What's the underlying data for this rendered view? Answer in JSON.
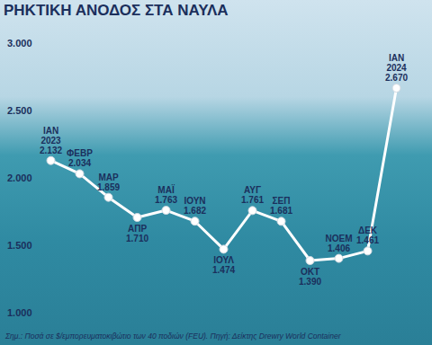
{
  "chart_data": {
    "type": "line",
    "title": "ΡΗΚΤΙΚΗ ΑΝΟΔΟΣ ΣΤΑ ΝΑΥΛΑ",
    "caption": "Σημ.: Ποσά σε $/εμπορευματοκιβώτιο των 40 ποδιών (FEU). Πηγή: Δείκτης Drewry World Container",
    "categories": [
      "ΙΑΝ\n2023",
      "ΦΕΒΡ",
      "ΜΑΡ",
      "ΑΠΡ",
      "ΜΑΪ",
      "ΙΟΥΝ",
      "ΙΟΥΛ",
      "ΑΥΓ",
      "ΣΕΠ",
      "ΟΚΤ",
      "ΝΟΕΜ",
      "ΔΕΚ",
      "ΙΑΝ\n2024"
    ],
    "values": [
      2132,
      2034,
      1859,
      1710,
      1763,
      1682,
      1474,
      1761,
      1681,
      1390,
      1406,
      1461,
      2670
    ],
    "value_labels": [
      "2.132",
      "2.034",
      "1.859",
      "1.710",
      "1.763",
      "1.682",
      "1.474",
      "1.761",
      "1.681",
      "1.390",
      "1.406",
      "1.461",
      "2.670"
    ],
    "data_labels": true,
    "color": "#ffffff",
    "marker": "circle",
    "ylim": [
      1000,
      3000
    ],
    "yticks": [
      {
        "value": 1000,
        "label": "1.000"
      },
      {
        "value": 1500,
        "label": "1.500"
      },
      {
        "value": 2000,
        "label": "2.000"
      },
      {
        "value": 2500,
        "label": "2.500"
      },
      {
        "value": 3000,
        "label": "3.000"
      }
    ],
    "grid": false,
    "tick_labels": "y"
  }
}
